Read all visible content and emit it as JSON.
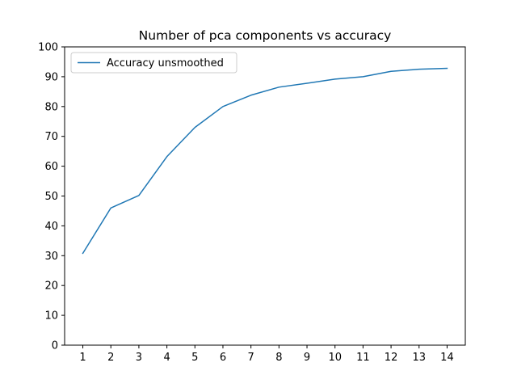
{
  "chart_data": {
    "type": "line",
    "title": "Number of pca components vs accuracy",
    "xlabel": "",
    "ylabel": "",
    "x": [
      1,
      2,
      3,
      4,
      5,
      6,
      7,
      8,
      9,
      10,
      11,
      12,
      13,
      14
    ],
    "series": [
      {
        "name": "Accuracy unsmoothed",
        "color": "#1f77b4",
        "values": [
          30.8,
          46.0,
          50.2,
          63.2,
          73.0,
          80.0,
          83.8,
          86.5,
          87.8,
          89.2,
          90.0,
          91.8,
          92.5,
          92.8
        ]
      }
    ],
    "xlim": [
      0.35,
      14.65
    ],
    "ylim": [
      0,
      100
    ],
    "xticks": [
      1,
      2,
      3,
      4,
      5,
      6,
      7,
      8,
      9,
      10,
      11,
      12,
      13,
      14
    ],
    "yticks": [
      0,
      10,
      20,
      30,
      40,
      50,
      60,
      70,
      80,
      90,
      100
    ],
    "grid": false,
    "legend_position": "upper-left"
  }
}
